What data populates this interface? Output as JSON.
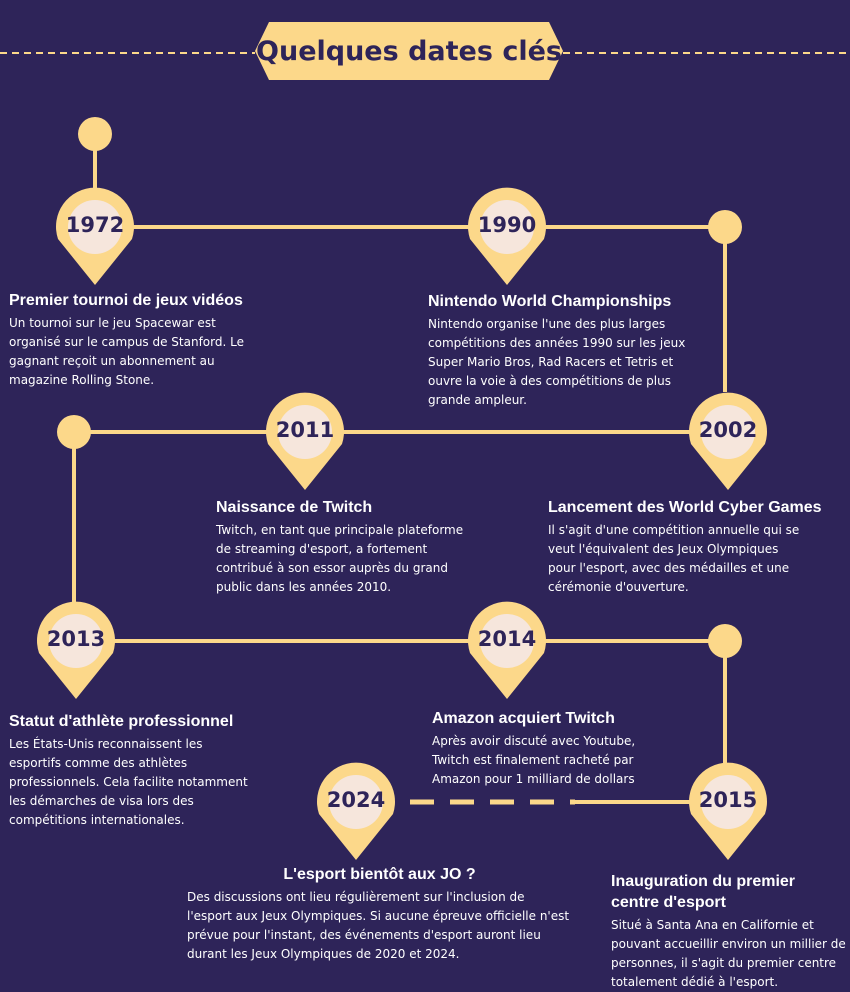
{
  "title": "Quelques dates clés",
  "colors": {
    "background": "#2e2459",
    "accent": "#fcd88a",
    "pin_inner": "#f6e6dc",
    "text": "#ffffff"
  },
  "events": [
    {
      "year": "1972",
      "title": "Premier tournoi de jeux vidéos",
      "description": "Un tournoi sur le jeu Spacewar est organisé sur le campus de Stanford. Le gagnant reçoit un abonnement au magazine Rolling Stone."
    },
    {
      "year": "1990",
      "title": "Nintendo World Championships",
      "description": "Nintendo organise l'une des plus larges compétitions des années 1990 sur les jeux Super Mario Bros, Rad Racers et Tetris et ouvre la voie à des compétitions de plus grande ampleur."
    },
    {
      "year": "2002",
      "title": "Lancement des World Cyber Games",
      "description": "Il s'agit d'une compétition annuelle qui se veut l'équivalent des Jeux Olympiques pour l'esport, avec des médailles et une cérémonie d'ouverture."
    },
    {
      "year": "2011",
      "title": "Naissance de Twitch",
      "description": "Twitch, en tant que principale plateforme de streaming d'esport, a fortement contribué à son essor auprès du grand public dans les années 2010."
    },
    {
      "year": "2013",
      "title": "Statut d'athlète professionnel",
      "description": "Les États-Unis reconnaissent les esportifs comme des athlètes professionnels. Cela facilite notamment les démarches de visa lors des compétitions internationales."
    },
    {
      "year": "2014",
      "title": "Amazon acquiert Twitch",
      "description": "Après avoir discuté avec Youtube, Twitch est finalement racheté par Amazon pour 1 milliard de dollars"
    },
    {
      "year": "2015",
      "title": "Inauguration du premier centre d'esport",
      "description": "Situé à Santa Ana en Californie et pouvant accueillir environ un millier de personnes, il s'agit du premier centre totalement dédié à l'esport."
    },
    {
      "year": "2024",
      "title": "L'esport bientôt aux JO ?",
      "description": "Des discussions ont lieu régulièrement sur l'inclusion de l'esport aux Jeux Olympiques. Si aucune épreuve officielle n'est prévue pour l'instant, des événements d'esport auront lieu durant les Jeux Olympiques de 2020 et 2024."
    }
  ]
}
